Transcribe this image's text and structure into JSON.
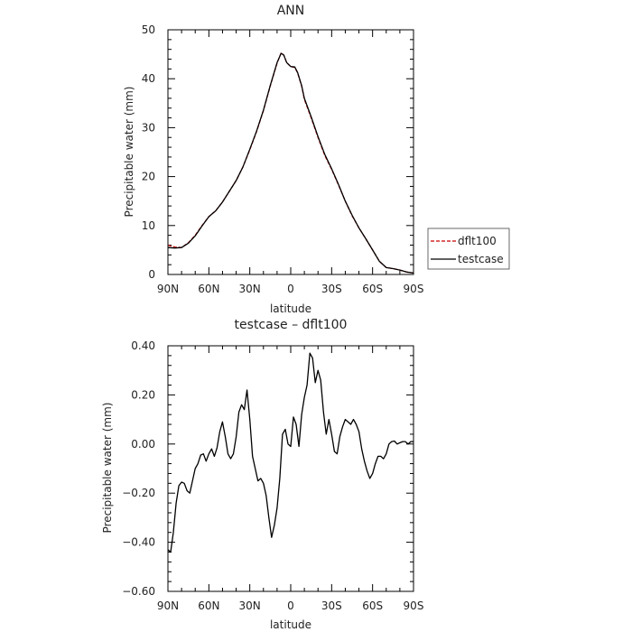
{
  "chart_data": [
    {
      "type": "line",
      "title": "ANN",
      "xlabel": "latitude",
      "ylabel": "Precipitable water (mm)",
      "x_ticks": [
        {
          "value": -90,
          "label": "90N"
        },
        {
          "value": -60,
          "label": "60N"
        },
        {
          "value": -30,
          "label": "30N"
        },
        {
          "value": 0,
          "label": "0"
        },
        {
          "value": 30,
          "label": "30S"
        },
        {
          "value": 60,
          "label": "60S"
        },
        {
          "value": 90,
          "label": "90S"
        }
      ],
      "xlim": [
        -90,
        90
      ],
      "y_ticks": [
        {
          "value": 0,
          "label": "0"
        },
        {
          "value": 10,
          "label": "10"
        },
        {
          "value": 20,
          "label": "20"
        },
        {
          "value": 30,
          "label": "30"
        },
        {
          "value": 40,
          "label": "40"
        },
        {
          "value": 50,
          "label": "50"
        }
      ],
      "ylim": [
        0,
        50
      ],
      "grid": false,
      "legend_position": "right",
      "series": [
        {
          "name": "dflt100",
          "color": "#cc0000",
          "dashed": true,
          "x": [
            -90,
            -85,
            -80,
            -75,
            -70,
            -65,
            -60,
            -55,
            -50,
            -45,
            -40,
            -35,
            -30,
            -25,
            -20,
            -15,
            -10,
            -7,
            -5,
            -3,
            0,
            3,
            5,
            8,
            10,
            15,
            20,
            25,
            30,
            35,
            40,
            45,
            50,
            55,
            60,
            65,
            70,
            75,
            80,
            85,
            90
          ],
          "y": [
            6.0,
            5.6,
            5.5,
            6.5,
            8.0,
            10.0,
            11.8,
            13.0,
            14.8,
            17.0,
            19.2,
            22.0,
            25.5,
            29.2,
            33.5,
            38.5,
            43.2,
            45.3,
            44.8,
            43.3,
            42.5,
            42.3,
            41.2,
            38.5,
            35.8,
            32.0,
            28.0,
            24.3,
            21.5,
            18.3,
            15.0,
            12.0,
            9.5,
            7.3,
            5.0,
            2.7,
            1.4,
            1.2,
            0.9,
            0.5,
            0.3
          ]
        },
        {
          "name": "testcase",
          "color": "#000000",
          "dashed": false,
          "x": [
            -90,
            -85,
            -80,
            -75,
            -70,
            -65,
            -60,
            -55,
            -50,
            -45,
            -40,
            -35,
            -30,
            -25,
            -20,
            -15,
            -10,
            -7,
            -5,
            -3,
            0,
            3,
            5,
            8,
            10,
            15,
            20,
            25,
            30,
            35,
            40,
            45,
            50,
            55,
            60,
            65,
            70,
            75,
            80,
            85,
            90
          ],
          "y": [
            5.5,
            5.4,
            5.5,
            6.4,
            7.9,
            9.9,
            11.8,
            13.0,
            14.8,
            17.0,
            19.2,
            22.0,
            25.6,
            29.3,
            33.6,
            38.6,
            43.3,
            45.2,
            44.8,
            43.3,
            42.5,
            42.4,
            41.3,
            38.6,
            36.0,
            32.2,
            28.2,
            24.5,
            21.6,
            18.4,
            15.0,
            12.1,
            9.5,
            7.3,
            5.0,
            2.7,
            1.4,
            1.2,
            0.9,
            0.5,
            0.3
          ]
        }
      ]
    },
    {
      "type": "line",
      "title": "testcase – dflt100",
      "xlabel": "latitude",
      "ylabel": "Precipitable water (mm)",
      "x_ticks": [
        {
          "value": -90,
          "label": "90N"
        },
        {
          "value": -60,
          "label": "60N"
        },
        {
          "value": -30,
          "label": "30N"
        },
        {
          "value": 0,
          "label": "0"
        },
        {
          "value": 30,
          "label": "30S"
        },
        {
          "value": 60,
          "label": "60S"
        },
        {
          "value": 90,
          "label": "90S"
        }
      ],
      "xlim": [
        -90,
        90
      ],
      "y_ticks": [
        {
          "value": -0.6,
          "label": "−0.60"
        },
        {
          "value": -0.4,
          "label": "−0.40"
        },
        {
          "value": -0.2,
          "label": "−0.20"
        },
        {
          "value": 0.0,
          "label": "0.00"
        },
        {
          "value": 0.2,
          "label": "0.20"
        },
        {
          "value": 0.4,
          "label": "0.40"
        }
      ],
      "ylim": [
        -0.6,
        0.4
      ],
      "grid": false,
      "series": [
        {
          "color": "#000000",
          "dashed": false,
          "x": [
            -90,
            -88,
            -86,
            -84,
            -82,
            -80,
            -78,
            -76,
            -74,
            -72,
            -70,
            -68,
            -66,
            -64,
            -62,
            -60,
            -58,
            -56,
            -54,
            -52,
            -50,
            -48,
            -46,
            -44,
            -42,
            -40,
            -38,
            -36,
            -34,
            -32,
            -30,
            -28,
            -26,
            -24,
            -22,
            -20,
            -18,
            -16,
            -14,
            -12,
            -10,
            -8,
            -6,
            -4,
            -2,
            0,
            2,
            4,
            6,
            8,
            10,
            12,
            14,
            16,
            18,
            20,
            22,
            24,
            26,
            28,
            30,
            32,
            34,
            36,
            38,
            40,
            42,
            44,
            46,
            48,
            50,
            52,
            54,
            56,
            58,
            60,
            62,
            64,
            66,
            68,
            70,
            72,
            74,
            76,
            78,
            80,
            82,
            84,
            86,
            88,
            90
          ],
          "y": [
            -0.43,
            -0.44,
            -0.36,
            -0.24,
            -0.17,
            -0.155,
            -0.16,
            -0.19,
            -0.2,
            -0.15,
            -0.1,
            -0.08,
            -0.045,
            -0.04,
            -0.07,
            -0.04,
            -0.02,
            -0.05,
            -0.015,
            0.05,
            0.09,
            0.03,
            -0.04,
            -0.06,
            -0.04,
            0.03,
            0.13,
            0.16,
            0.14,
            0.22,
            0.1,
            -0.05,
            -0.1,
            -0.15,
            -0.14,
            -0.16,
            -0.21,
            -0.3,
            -0.38,
            -0.33,
            -0.26,
            -0.14,
            0.04,
            0.06,
            0.0,
            -0.01,
            0.11,
            0.08,
            -0.01,
            0.12,
            0.19,
            0.24,
            0.37,
            0.35,
            0.25,
            0.3,
            0.26,
            0.13,
            0.04,
            0.1,
            0.04,
            -0.03,
            -0.04,
            0.03,
            0.07,
            0.1,
            0.09,
            0.08,
            0.1,
            0.08,
            0.05,
            -0.02,
            -0.07,
            -0.11,
            -0.14,
            -0.12,
            -0.08,
            -0.05,
            -0.05,
            -0.06,
            -0.04,
            0.0,
            0.01,
            0.012,
            0.0,
            0.005,
            0.01,
            0.01,
            0.0,
            0.01,
            0.01
          ]
        }
      ]
    }
  ]
}
